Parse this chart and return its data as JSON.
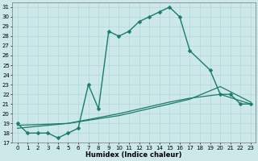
{
  "xlabel": "Humidex (Indice chaleur)",
  "bg_color": "#cce8e8",
  "line_color": "#1a7a6e",
  "xlim_min": -0.5,
  "xlim_max": 23.5,
  "ylim_min": 17,
  "ylim_max": 31.5,
  "yticks": [
    17,
    18,
    19,
    20,
    21,
    22,
    23,
    24,
    25,
    26,
    27,
    28,
    29,
    30,
    31
  ],
  "xticks": [
    0,
    1,
    2,
    3,
    4,
    5,
    6,
    7,
    8,
    9,
    10,
    11,
    12,
    13,
    14,
    15,
    16,
    17,
    18,
    19,
    20,
    21,
    22,
    23
  ],
  "main_x": [
    0,
    1,
    2,
    3,
    4,
    5,
    6,
    7,
    8,
    9,
    10,
    11,
    12,
    13,
    14,
    15,
    16,
    17,
    19,
    20,
    21,
    22,
    23
  ],
  "main_y": [
    19,
    18,
    18,
    18,
    17.5,
    18,
    18.5,
    23,
    20.5,
    28.5,
    28,
    28.5,
    29.5,
    30,
    30.5,
    31,
    30,
    26.5,
    24.5,
    22,
    22,
    21,
    21
  ],
  "smooth1_x": [
    0,
    5,
    10,
    15,
    17,
    20,
    23
  ],
  "smooth1_y": [
    18.8,
    19.0,
    19.8,
    21.0,
    21.5,
    22.8,
    21.2
  ],
  "smooth2_x": [
    0,
    5,
    10,
    15,
    17,
    20,
    23
  ],
  "smooth2_y": [
    18.5,
    19.0,
    20.0,
    21.2,
    21.6,
    22.0,
    21.0
  ],
  "grid_color": "#add4d4",
  "tick_fontsize": 5.0,
  "label_fontsize": 6.0,
  "marker_size": 2.5,
  "main_lw": 1.0,
  "smooth_lw": 0.9
}
